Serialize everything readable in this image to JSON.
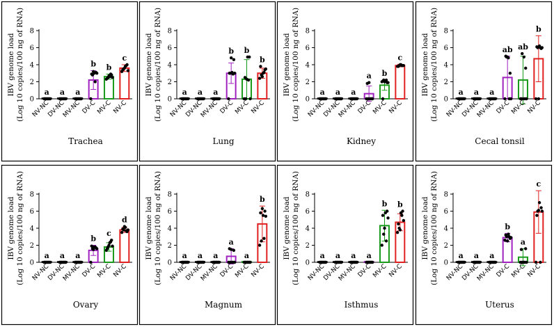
{
  "figure": {
    "y_label_line1": "IBV genome load",
    "y_label_line2": "(Log 10 copies/100 ng of RNA)"
  },
  "chart_data": [
    {
      "type": "bar",
      "title": "Trachea",
      "ylabel": "IBV genome load (Log 10 copies/100 ng of RNA)",
      "ylim": [
        0,
        8
      ],
      "yticks": [
        0,
        2,
        4,
        6,
        8
      ],
      "categories": [
        "NV-NC",
        "DV-NC",
        "MV-NC",
        "DV-C",
        "MV-C",
        "NV-C"
      ],
      "values": [
        0,
        0,
        0,
        2.2,
        2.6,
        3.6
      ],
      "errors": [
        0,
        0,
        0,
        1.1,
        0.3,
        0.4
      ],
      "letters": [
        "a",
        "a",
        "a",
        "b",
        "b",
        "c"
      ],
      "colors": [
        "#000000",
        "#000000",
        "#000000",
        "#a020c0",
        "#1a9a1a",
        "#e02020"
      ],
      "points": [
        [
          0,
          0,
          0,
          0,
          0,
          0,
          0,
          0
        ],
        [
          0,
          0,
          0,
          0,
          0,
          0,
          0,
          0
        ],
        [
          0,
          0,
          0,
          0,
          0,
          0,
          0,
          0
        ],
        [
          0,
          2.8,
          3.0,
          3.1,
          2.9,
          3.2,
          2.0,
          3.0
        ],
        [
          2.3,
          2.5,
          2.6,
          2.8,
          2.4,
          2.7,
          2.9,
          2.5
        ],
        [
          3.2,
          3.5,
          3.8,
          4.0,
          3.4,
          3.6,
          3.9,
          3.3
        ]
      ]
    },
    {
      "type": "bar",
      "title": "Lung",
      "ylabel": "IBV genome load (Log 10 copies/100 ng of RNA)",
      "ylim": [
        0,
        8
      ],
      "yticks": [
        0,
        2,
        4,
        6,
        8
      ],
      "categories": [
        "NV-NC",
        "DV-NC",
        "MV-NC",
        "DV-C",
        "MV-C",
        "NV-C"
      ],
      "values": [
        0,
        0,
        0,
        3.0,
        2.3,
        3.0
      ],
      "errors": [
        0,
        0,
        0,
        1.2,
        2.3,
        0.6
      ],
      "letters": [
        "a",
        "a",
        "a",
        "b",
        "b",
        "b"
      ],
      "colors": [
        "#000000",
        "#000000",
        "#000000",
        "#a020c0",
        "#1a9a1a",
        "#e02020"
      ],
      "points": [
        [
          0,
          0,
          0,
          0,
          0,
          0,
          0,
          0
        ],
        [
          0,
          0,
          0,
          0,
          0,
          0,
          0,
          0
        ],
        [
          0,
          0,
          0,
          0,
          0,
          0,
          0,
          0
        ],
        [
          0,
          3.0,
          3.1,
          4.6,
          3.0,
          4.8,
          2.9,
          3.0
        ],
        [
          0,
          0,
          4.9,
          4.9,
          2.5,
          2.3,
          2.2,
          0
        ],
        [
          2.4,
          2.8,
          3.0,
          3.4,
          3.8,
          2.6,
          3.1,
          3.5
        ]
      ]
    },
    {
      "type": "bar",
      "title": "Kidney",
      "ylabel": "IBV genome load (Log 10 copies/100 ng of RNA)",
      "ylim": [
        0,
        8
      ],
      "yticks": [
        0,
        2,
        4,
        6,
        8
      ],
      "categories": [
        "NV-NC",
        "DV-NC",
        "MV-NC",
        "DV-C",
        "MV-C",
        "NV-C"
      ],
      "values": [
        0,
        0,
        0,
        0.6,
        1.6,
        3.9
      ],
      "errors": [
        0,
        0,
        0,
        0.9,
        0.6,
        0.15
      ],
      "letters": [
        "a",
        "a",
        "a",
        "a",
        "b",
        "c"
      ],
      "colors": [
        "#000000",
        "#000000",
        "#000000",
        "#a020c0",
        "#1a9a1a",
        "#e02020"
      ],
      "points": [
        [
          0,
          0,
          0,
          0,
          0,
          0,
          0,
          0
        ],
        [
          0,
          0,
          0,
          0,
          0,
          0,
          0,
          0
        ],
        [
          0,
          0,
          0,
          0,
          0,
          0,
          0,
          0
        ],
        [
          0,
          0,
          0,
          0,
          1.8,
          1.9,
          0,
          0
        ],
        [
          2.0,
          2.2,
          2.1,
          1.9,
          0,
          2.0,
          2.2,
          1.9
        ],
        [
          3.8,
          3.9,
          4.0,
          3.9,
          3.8,
          4.0,
          3.9,
          3.9
        ]
      ]
    },
    {
      "type": "bar",
      "title": "Cecal tonsil",
      "ylabel": "IBV genome load (Log 10 copies/100 ng of RNA)",
      "ylim": [
        0,
        8
      ],
      "yticks": [
        0,
        2,
        4,
        6,
        8
      ],
      "categories": [
        "NV-NC",
        "DV-NC",
        "MV-NC",
        "DV-C",
        "MV-C",
        "NV-C"
      ],
      "values": [
        0,
        0,
        0,
        2.5,
        2.2,
        4.7
      ],
      "errors": [
        0,
        0,
        0,
        2.5,
        2.8,
        2.7
      ],
      "letters": [
        "a",
        "a",
        "a",
        "ab",
        "ab",
        "b"
      ],
      "colors": [
        "#000000",
        "#000000",
        "#000000",
        "#a020c0",
        "#1a9a1a",
        "#e02020"
      ],
      "points": [
        [
          0,
          0,
          0,
          0,
          0,
          0,
          0,
          0
        ],
        [
          0,
          0,
          0,
          0,
          0,
          0,
          0,
          0
        ],
        [
          0,
          0,
          0,
          0,
          0,
          0,
          0,
          0
        ],
        [
          0,
          4.9,
          4.8,
          3.0,
          5.0,
          4.9,
          0,
          0
        ],
        [
          0,
          5.3,
          4.9,
          3.6,
          0,
          0,
          0,
          0
        ],
        [
          0,
          6.0,
          6.2,
          5.9,
          6.1,
          0,
          6.0,
          6.0
        ]
      ]
    },
    {
      "type": "bar",
      "title": "Ovary",
      "ylabel": "IBV genome load (Log 10 copies/100 ng of RNA)",
      "ylim": [
        0,
        8
      ],
      "yticks": [
        0,
        2,
        4,
        6,
        8
      ],
      "categories": [
        "NV-NC",
        "DV-NC",
        "MV-NC",
        "DV-C",
        "MV-C",
        "NV-C"
      ],
      "values": [
        0,
        0,
        0,
        1.4,
        1.8,
        3.8
      ],
      "errors": [
        0,
        0,
        0,
        0.6,
        0.5,
        0.3
      ],
      "letters": [
        "a",
        "a",
        "a",
        "b",
        "c",
        "d"
      ],
      "colors": [
        "#000000",
        "#000000",
        "#000000",
        "#a020c0",
        "#1a9a1a",
        "#e02020"
      ],
      "points": [
        [
          0,
          0,
          0,
          0,
          0,
          0,
          0,
          0
        ],
        [
          0,
          0,
          0,
          0,
          0,
          0,
          0,
          0
        ],
        [
          0,
          0,
          0,
          0,
          0,
          0,
          0,
          0
        ],
        [
          0,
          1.6,
          1.8,
          1.7,
          1.9,
          1.5,
          1.8,
          1.6
        ],
        [
          1.4,
          1.8,
          2.3,
          2.6,
          1.6,
          2.0,
          2.4,
          1.9
        ],
        [
          3.5,
          3.8,
          4.1,
          3.6,
          3.9,
          4.2,
          3.7,
          3.8
        ]
      ]
    },
    {
      "type": "bar",
      "title": "Magnum",
      "ylabel": "IBV genome load (Log 10 copies/100 ng of RNA)",
      "ylim": [
        0,
        8
      ],
      "yticks": [
        0,
        2,
        4,
        6,
        8
      ],
      "categories": [
        "NV-NC",
        "DV-NC",
        "MV-NC",
        "DV-C",
        "MV-C",
        "NV-C"
      ],
      "values": [
        0,
        0,
        0,
        0.7,
        0,
        4.5
      ],
      "errors": [
        0,
        0,
        0,
        0.9,
        0,
        2.1
      ],
      "letters": [
        "a",
        "a",
        "a",
        "a",
        "a",
        "b"
      ],
      "colors": [
        "#000000",
        "#000000",
        "#000000",
        "#a020c0",
        "#1a9a1a",
        "#e02020"
      ],
      "points": [
        [
          0,
          0,
          0,
          0,
          0,
          0,
          0,
          0
        ],
        [
          0,
          0,
          0,
          0,
          0,
          0,
          0,
          0
        ],
        [
          0,
          0,
          0,
          0,
          0,
          0,
          0,
          0
        ],
        [
          0,
          0,
          0,
          1.4,
          1.6,
          1.5,
          0,
          0
        ],
        [
          0,
          0,
          0,
          0,
          0,
          0,
          0,
          0
        ],
        [
          2.0,
          2.5,
          5.5,
          6.0,
          5.8,
          6.3,
          2.8,
          5.4
        ]
      ]
    },
    {
      "type": "bar",
      "title": "Isthmus",
      "ylabel": "IBV genome load (Log 10 copies/100 ng of RNA)",
      "ylim": [
        0,
        8
      ],
      "yticks": [
        0,
        2,
        4,
        6,
        8
      ],
      "categories": [
        "NV-NC",
        "DV-NC",
        "MV-NC",
        "DV-C",
        "MV-C",
        "NV-C"
      ],
      "values": [
        0,
        0,
        0,
        0,
        4.3,
        4.7
      ],
      "errors": [
        0,
        0,
        0,
        0,
        1.8,
        1.0
      ],
      "letters": [
        "a",
        "a",
        "a",
        "a",
        "b",
        "b"
      ],
      "colors": [
        "#000000",
        "#000000",
        "#000000",
        "#a020c0",
        "#1a9a1a",
        "#e02020"
      ],
      "points": [
        [
          0,
          0,
          0,
          0,
          0,
          0,
          0,
          0
        ],
        [
          0,
          0,
          0,
          0,
          0,
          0,
          0,
          0
        ],
        [
          0,
          0,
          0,
          0,
          0,
          0,
          0,
          0
        ],
        [
          0,
          0,
          0,
          0,
          0,
          0,
          0,
          0
        ],
        [
          2.0,
          3.3,
          5.8,
          6.0,
          5.5,
          4.0,
          2.5,
          5.2
        ],
        [
          3.5,
          4.0,
          5.8,
          6.0,
          4.5,
          3.8,
          5.5,
          4.9
        ]
      ]
    },
    {
      "type": "bar",
      "title": "Uterus",
      "ylabel": "IBV genome load (Log 10 copies/100 ng of RNA)",
      "ylim": [
        0,
        8
      ],
      "yticks": [
        0,
        2,
        4,
        6,
        8
      ],
      "categories": [
        "NV-NC",
        "DV-NC",
        "MV-NC",
        "DV-C",
        "MV-C",
        "NV-C"
      ],
      "values": [
        0,
        0,
        0,
        2.9,
        0.6,
        5.9
      ],
      "errors": [
        0,
        0,
        0,
        0.5,
        1.0,
        2.5
      ],
      "letters": [
        "a",
        "a",
        "a",
        "b",
        "a",
        "c"
      ],
      "colors": [
        "#000000",
        "#000000",
        "#000000",
        "#a020c0",
        "#1a9a1a",
        "#e02020"
      ],
      "points": [
        [
          0,
          0,
          0,
          0,
          0,
          0,
          0,
          0
        ],
        [
          0,
          0,
          0,
          0,
          0,
          0,
          0,
          0
        ],
        [
          0,
          0,
          0,
          0,
          0,
          0,
          0,
          0
        ],
        [
          2.6,
          3.0,
          3.3,
          2.8,
          3.2,
          2.5,
          3.0,
          2.9
        ],
        [
          0,
          0,
          0,
          1.6,
          1.5,
          0,
          0,
          0
        ],
        [
          0,
          6.0,
          7.0,
          6.4,
          5.5,
          6.1,
          0,
          6.0
        ]
      ]
    }
  ]
}
